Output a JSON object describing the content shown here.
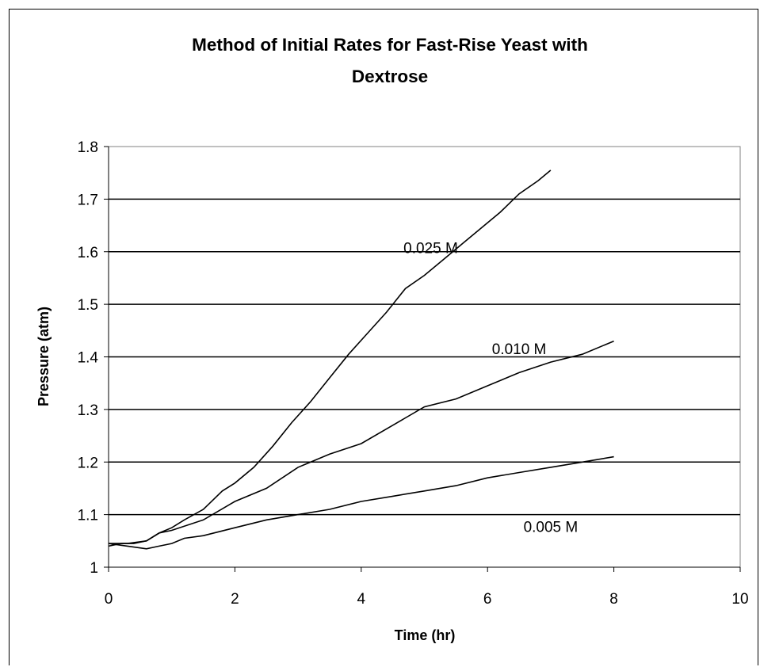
{
  "chart_data": {
    "type": "line",
    "title": "Method of Initial Rates for Fast-Rise Yeast with Dextrose",
    "title_lines": [
      "Method of Initial Rates for Fast-Rise Yeast with",
      "Dextrose"
    ],
    "xlabel": "Time (hr)",
    "ylabel": "Pressure (atm)",
    "xlim": [
      0,
      10
    ],
    "ylim": [
      1,
      1.8
    ],
    "x_ticks": [
      "0",
      "2",
      "4",
      "6",
      "8",
      "10"
    ],
    "y_ticks": [
      "1",
      "1.1",
      "1.2",
      "1.3",
      "1.4",
      "1.5",
      "1.6",
      "1.7",
      "1.8"
    ],
    "grid": "horizontal major gridlines",
    "legend": "none (series labeled inline)",
    "line_color": "#000000",
    "series": [
      {
        "name": "0.025 M",
        "x": [
          0,
          0.2,
          0.4,
          0.6,
          0.8,
          1.0,
          1.2,
          1.5,
          1.8,
          2.0,
          2.3,
          2.6,
          2.9,
          3.2,
          3.5,
          3.8,
          4.1,
          4.4,
          4.7,
          5.0,
          5.3,
          5.6,
          5.9,
          6.2,
          6.5,
          6.8,
          7.0
        ],
        "y": [
          1.04,
          1.045,
          1.045,
          1.05,
          1.065,
          1.075,
          1.09,
          1.11,
          1.145,
          1.16,
          1.19,
          1.23,
          1.275,
          1.315,
          1.36,
          1.405,
          1.445,
          1.485,
          1.53,
          1.555,
          1.585,
          1.615,
          1.645,
          1.675,
          1.71,
          1.735,
          1.755
        ]
      },
      {
        "name": "0.010 M",
        "x": [
          0,
          0.3,
          0.6,
          0.8,
          1.0,
          1.5,
          2.0,
          2.5,
          3.0,
          3.5,
          4.0,
          4.5,
          5.0,
          5.5,
          6.0,
          6.5,
          7.0,
          7.5,
          8.0
        ],
        "y": [
          1.045,
          1.045,
          1.05,
          1.065,
          1.07,
          1.09,
          1.125,
          1.15,
          1.19,
          1.215,
          1.235,
          1.27,
          1.305,
          1.32,
          1.345,
          1.37,
          1.39,
          1.405,
          1.43
        ]
      },
      {
        "name": "0.005 M",
        "x": [
          0,
          0.3,
          0.6,
          0.8,
          1.0,
          1.2,
          1.5,
          2.0,
          2.5,
          3.0,
          3.5,
          4.0,
          4.5,
          5.0,
          5.5,
          6.0,
          6.5,
          7.0,
          7.5,
          8.0
        ],
        "y": [
          1.045,
          1.04,
          1.035,
          1.04,
          1.045,
          1.055,
          1.06,
          1.075,
          1.09,
          1.1,
          1.11,
          1.125,
          1.135,
          1.145,
          1.155,
          1.17,
          1.18,
          1.19,
          1.2,
          1.21
        ]
      }
    ]
  }
}
